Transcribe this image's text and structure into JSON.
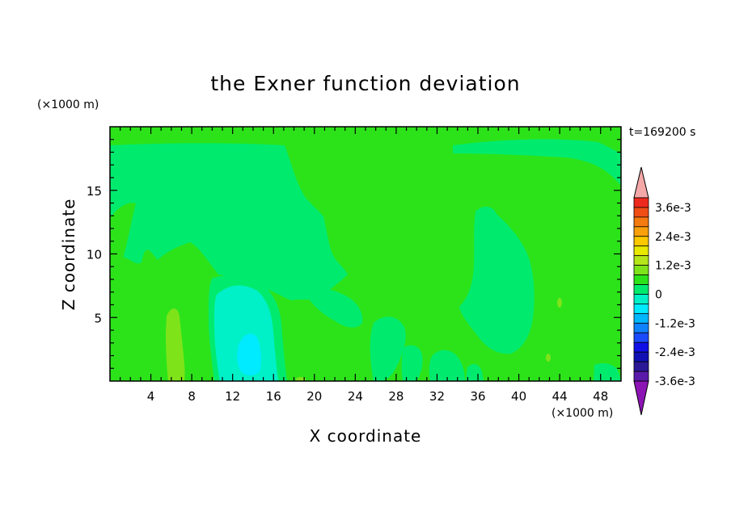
{
  "chart_data": {
    "type": "heatmap",
    "title": "the Exner function deviation",
    "xlabel": "X coordinate",
    "ylabel": "Z coordinate",
    "x_unit": "(×1000 m)",
    "y_unit": "(×1000 m)",
    "time_label": "t=169200 s",
    "xlim": [
      0,
      50
    ],
    "ylim": [
      0,
      20
    ],
    "x_ticks": [
      "4",
      "8",
      "12",
      "16",
      "20",
      "24",
      "28",
      "32",
      "36",
      "40",
      "44",
      "48"
    ],
    "y_ticks": [
      "5",
      "10",
      "15"
    ],
    "colorbar": {
      "labels": [
        "3.6e-3",
        "2.4e-3",
        "1.2e-3",
        "0",
        "-1.2e-3",
        "-2.4e-3",
        "-3.6e-3"
      ],
      "levels_top_to_bottom": [
        {
          "color": "#f5a8a8",
          "role": "over"
        },
        {
          "color": "#ee2a1e"
        },
        {
          "color": "#f14e16"
        },
        {
          "color": "#f57a10"
        },
        {
          "color": "#f9a00c"
        },
        {
          "color": "#fcc800"
        },
        {
          "color": "#e8e800"
        },
        {
          "color": "#b4e61a"
        },
        {
          "color": "#7fe31a"
        },
        {
          "color": "#2ce31a"
        },
        {
          "color": "#00eb6e"
        },
        {
          "color": "#00f0c8"
        },
        {
          "color": "#00ebff"
        },
        {
          "color": "#00b6ff"
        },
        {
          "color": "#0f82ff"
        },
        {
          "color": "#1a4bff"
        },
        {
          "color": "#1010e6"
        },
        {
          "color": "#1010b4"
        },
        {
          "color": "#2a1896"
        },
        {
          "color": "#5a1aaa"
        },
        {
          "color": "#8c14b4",
          "role": "under"
        }
      ]
    },
    "field_colors": {
      "zero_band": "#2ce31a",
      "slightly_negative": "#00eb6e",
      "moderately_negative": "#00f0c8",
      "minimum_core": "#00ebff",
      "slightly_positive": "#7fe31a"
    },
    "notable_features": [
      {
        "label": "negative core",
        "x": 13,
        "z": 2.5,
        "level": "-1.2e-3"
      },
      {
        "label": "positive column",
        "x": 6.2,
        "z": 3,
        "level": "1.2e-3"
      },
      {
        "label": "upper negative plume",
        "x": 14,
        "z": 13,
        "level": "-6e-4"
      },
      {
        "label": "right negative column",
        "x": 38,
        "z": 8,
        "level": "-6e-4"
      }
    ]
  }
}
